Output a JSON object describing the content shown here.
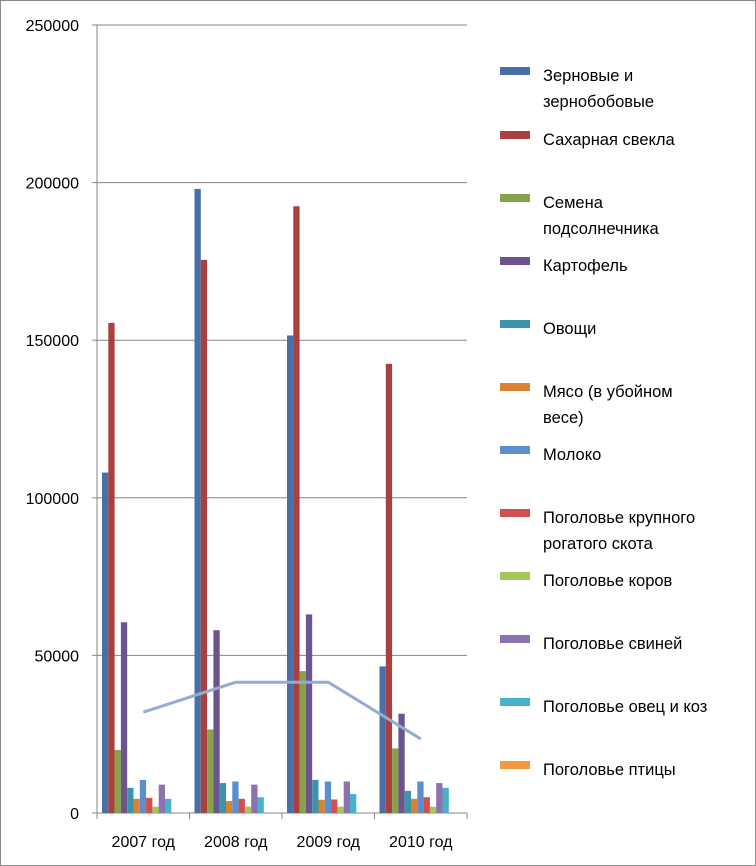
{
  "chart_data": {
    "type": "bar",
    "title": "",
    "xlabel": "",
    "ylabel": "",
    "ylim": [
      0,
      250000
    ],
    "yticks": [
      0,
      50000,
      100000,
      150000,
      200000,
      250000
    ],
    "ytick_labels": [
      "0",
      "50000",
      "100000",
      "150000",
      "200000",
      "250000"
    ],
    "grid": "horizontal",
    "legend_position": "right",
    "categories": [
      "2007 год",
      "2008 год",
      "2009 год",
      "2010 год"
    ],
    "series": [
      {
        "name": "Зерновые и зернобобовые",
        "label_lines": [
          "Зерновые и",
          "зернобобовые"
        ],
        "color": "#4a6fa6",
        "values": [
          108000,
          198000,
          151500,
          46500
        ]
      },
      {
        "name": "Сахарная свекла",
        "label_lines": [
          "Сахарная свекла"
        ],
        "color": "#a8413d",
        "values": [
          155500,
          175500,
          192500,
          142500
        ]
      },
      {
        "name": "Семена подсолнечника",
        "label_lines": [
          "Семена",
          "подсолнечника"
        ],
        "color": "#86a24a",
        "values": [
          20000,
          26500,
          45000,
          20500
        ]
      },
      {
        "name": "Картофель",
        "label_lines": [
          "Картофель"
        ],
        "color": "#6c558e",
        "values": [
          60500,
          58000,
          63000,
          31500
        ]
      },
      {
        "name": "Овощи",
        "label_lines": [
          "Овощи"
        ],
        "color": "#3c94ab",
        "values": [
          8000,
          9500,
          10500,
          7000
        ]
      },
      {
        "name": "Мясо (в убойном весе)",
        "label_lines": [
          "Мясо (в убойном",
          "весе)"
        ],
        "color": "#d98332",
        "values": [
          4500,
          3800,
          4200,
          4500
        ]
      },
      {
        "name": "Молоко",
        "label_lines": [
          "Молоко"
        ],
        "color": "#5b8fd0",
        "values": [
          10500,
          10000,
          10000,
          10000
        ]
      },
      {
        "name": "Поголовье крупного рогатого скота",
        "label_lines": [
          "Поголовье крупного",
          "рогатого скота"
        ],
        "color": "#d2504b",
        "values": [
          4800,
          4500,
          4300,
          5000
        ]
      },
      {
        "name": "Поголовье коров",
        "label_lines": [
          "Поголовье коров"
        ],
        "color": "#a2c55c",
        "values": [
          2000,
          2000,
          2000,
          2000
        ]
      },
      {
        "name": "Поголовье свиней",
        "label_lines": [
          "Поголовье свиней"
        ],
        "color": "#8d72b0",
        "values": [
          9000,
          9000,
          10000,
          9500
        ]
      },
      {
        "name": "Поголовье овец и коз",
        "label_lines": [
          "Поголовье овец и коз"
        ],
        "color": "#47b2c9",
        "values": [
          4500,
          5000,
          6000,
          8000
        ]
      },
      {
        "name": "Поголовье птицы",
        "label_lines": [
          "Поголовье птицы"
        ],
        "color": "#f39a40",
        "values": [
          null,
          null,
          null,
          null
        ]
      }
    ],
    "line_overlay": {
      "color": "#95acd1",
      "points": [
        {
          "x": "2007 год",
          "y": 32000
        },
        {
          "x": "2008 год",
          "y": 41500
        },
        {
          "x": "2009 год",
          "y": 41500
        },
        {
          "x": "2010 год",
          "y": 23500
        }
      ]
    }
  }
}
